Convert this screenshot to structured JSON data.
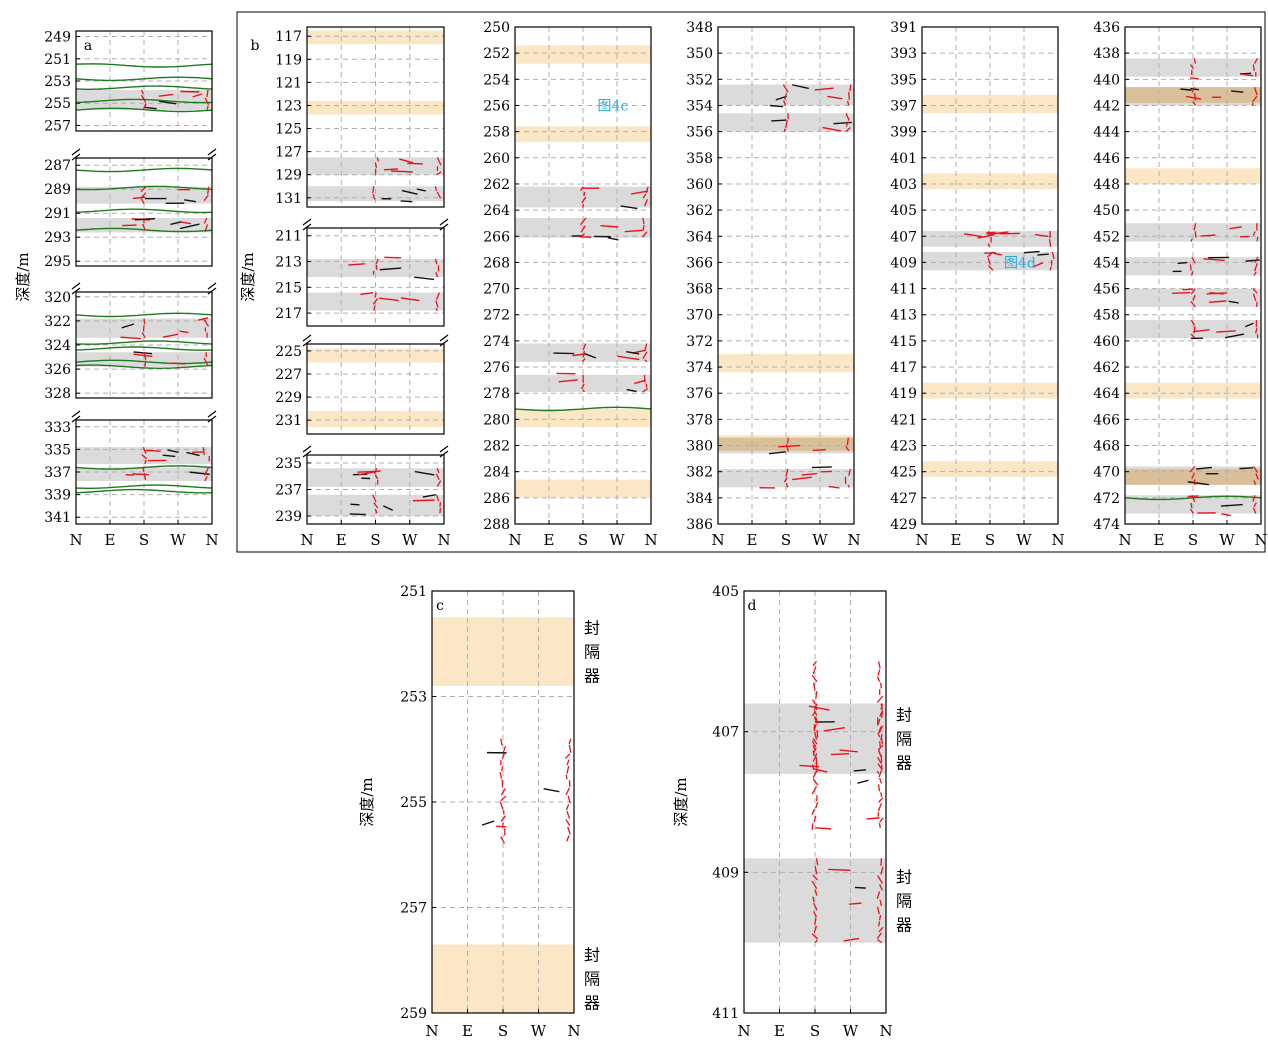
{
  "chart_data": {
    "type": "borehole-fracture-log",
    "ylabel": "深度/m",
    "x_tick_labels": [
      "N",
      "E",
      "S",
      "W",
      "N"
    ],
    "legend_colors": {
      "fracture_red": "#e8131b",
      "fracture_black": "#111111",
      "bedding_green": "#1f7a1f",
      "packer_band": "#fbe7c6",
      "gray_band": "#d9d9d9"
    },
    "panels": [
      {
        "label": "a",
        "segments": [
          {
            "yticks": [
              249,
              251,
              253,
              255,
              257
            ],
            "ylim": [
              248.5,
              257.5
            ],
            "gray": [
              [
                253.8,
                255.6
              ]
            ],
            "orange": [],
            "green": [
              252.8,
              253.6,
              254.8,
              255.6,
              251.6
            ]
          },
          {
            "yticks": [
              287,
              289,
              291,
              293,
              295
            ],
            "ylim": [
              286.4,
              295.4
            ],
            "gray": [
              [
                288.8,
                290.2
              ],
              [
                291.4,
                292.6
              ]
            ],
            "orange": [],
            "green": [
              287.4,
              288.9,
              290.8,
              292.4
            ]
          },
          {
            "yticks": [
              320,
              322,
              324,
              326,
              328
            ],
            "ylim": [
              319.6,
              328.4
            ],
            "gray": [
              [
                321.8,
                323.4
              ],
              [
                324.6,
                325.8
              ]
            ],
            "orange": [],
            "green": [
              321.5,
              323.8,
              324.3,
              325.4,
              325.8
            ]
          },
          {
            "yticks": [
              333,
              335,
              337,
              339,
              341
            ],
            "ylim": [
              332.4,
              341.6
            ],
            "gray": [
              [
                334.8,
                336.3
              ],
              [
                336.6,
                337.8
              ]
            ],
            "orange": [],
            "green": [
              336.6,
              338.3,
              338.7
            ]
          }
        ]
      },
      {
        "label": "b",
        "columns": [
          {
            "segments": [
              {
                "yticks": [
                  117,
                  119,
                  121,
                  123,
                  125,
                  127,
                  129,
                  131
                ],
                "ylim": [
                  116.2,
                  131.8
                ],
                "gray": [
                  [
                    127.5,
                    129.0
                  ],
                  [
                    130.0,
                    131.3
                  ]
                ],
                "orange": [
                  [
                    116.5,
                    117.7
                  ],
                  [
                    122.6,
                    123.8
                  ]
                ],
                "green": []
              },
              {
                "yticks": [
                  211,
                  213,
                  215,
                  217
                ],
                "ylim": [
                  210.4,
                  218.0
                ],
                "gray": [
                  [
                    212.8,
                    214.2
                  ],
                  [
                    215.4,
                    216.8
                  ]
                ],
                "orange": [],
                "green": []
              },
              {
                "yticks": [
                  225,
                  227,
                  229,
                  231
                ],
                "ylim": [
                  224.4,
                  232.2
                ],
                "gray": [],
                "orange": [
                  [
                    224.8,
                    226.0
                  ],
                  [
                    230.2,
                    231.6
                  ]
                ],
                "green": []
              },
              {
                "yticks": [
                  235,
                  237,
                  239
                ],
                "ylim": [
                  234.4,
                  239.6
                ],
                "gray": [
                  [
                    235.4,
                    236.8
                  ],
                  [
                    237.4,
                    239.0
                  ]
                ],
                "orange": [],
                "green": []
              }
            ]
          },
          {
            "yticks": [
              250,
              252,
              254,
              256,
              258,
              260,
              262,
              264,
              266,
              268,
              270,
              272,
              274,
              276,
              278,
              280,
              282,
              284,
              286,
              288
            ],
            "ylim": [
              250,
              288
            ],
            "gray": [
              [
                262.2,
                263.8
              ],
              [
                264.6,
                266.1
              ],
              [
                274.2,
                275.6
              ],
              [
                276.6,
                277.9
              ]
            ],
            "orange": [
              [
                251.4,
                252.8
              ],
              [
                257.6,
                258.8
              ],
              [
                279.2,
                280.6
              ],
              [
                284.6,
                286.0
              ]
            ],
            "green": [
              279.2
            ],
            "callout": "图4c"
          },
          {
            "yticks": [
              348,
              350,
              352,
              354,
              356,
              358,
              360,
              362,
              364,
              366,
              368,
              370,
              372,
              374,
              376,
              378,
              380,
              382,
              384,
              386
            ],
            "ylim": [
              348,
              386
            ],
            "gray": [
              [
                352.4,
                354.0
              ],
              [
                354.6,
                356.0
              ],
              [
                379.4,
                380.6
              ],
              [
                381.8,
                383.2
              ]
            ],
            "orange": [
              [
                373.0,
                374.4
              ],
              [
                379.2,
                380.4
              ]
            ],
            "green": []
          },
          {
            "yticks": [
              391,
              393,
              395,
              397,
              399,
              401,
              403,
              405,
              407,
              409,
              411,
              413,
              415,
              417,
              419,
              421,
              423,
              425,
              427,
              429
            ],
            "ylim": [
              391,
              429
            ],
            "gray": [
              [
                406.6,
                407.8
              ],
              [
                408.2,
                409.6
              ]
            ],
            "orange": [
              [
                396.2,
                397.6
              ],
              [
                402.2,
                403.4
              ],
              [
                418.2,
                419.4
              ],
              [
                424.2,
                425.4
              ]
            ],
            "green": [],
            "callout": "图4d"
          },
          {
            "yticks": [
              436,
              438,
              440,
              442,
              444,
              446,
              448,
              450,
              452,
              454,
              456,
              458,
              460,
              462,
              464,
              466,
              468,
              470,
              472,
              474
            ],
            "ylim": [
              436,
              474
            ],
            "gray": [
              [
                438.4,
                439.8
              ],
              [
                440.6,
                442.0
              ],
              [
                451.0,
                452.4
              ],
              [
                453.6,
                455.0
              ],
              [
                456.0,
                457.4
              ],
              [
                458.4,
                459.8
              ],
              [
                469.6,
                471.0
              ],
              [
                471.8,
                473.2
              ]
            ],
            "orange": [
              [
                440.6,
                441.8
              ],
              [
                446.8,
                448.0
              ],
              [
                463.2,
                464.4
              ],
              [
                469.8,
                471.0
              ]
            ],
            "green": [
              472.0
            ]
          }
        ]
      },
      {
        "label": "c",
        "yticks": [
          251,
          253,
          255,
          257,
          259
        ],
        "ylim": [
          251,
          259
        ],
        "orange": [
          [
            251.5,
            252.8
          ],
          [
            257.7,
            259.0
          ]
        ],
        "gray": [],
        "packer_labels": [
          "封隔器",
          "封隔器"
        ]
      },
      {
        "label": "d",
        "yticks": [
          405,
          407,
          409,
          411
        ],
        "ylim": [
          405,
          411
        ],
        "gray": [
          [
            406.6,
            407.6
          ],
          [
            408.8,
            410.0
          ]
        ],
        "orange": [],
        "packer_labels": [
          "封隔器",
          "封隔器"
        ]
      }
    ]
  }
}
